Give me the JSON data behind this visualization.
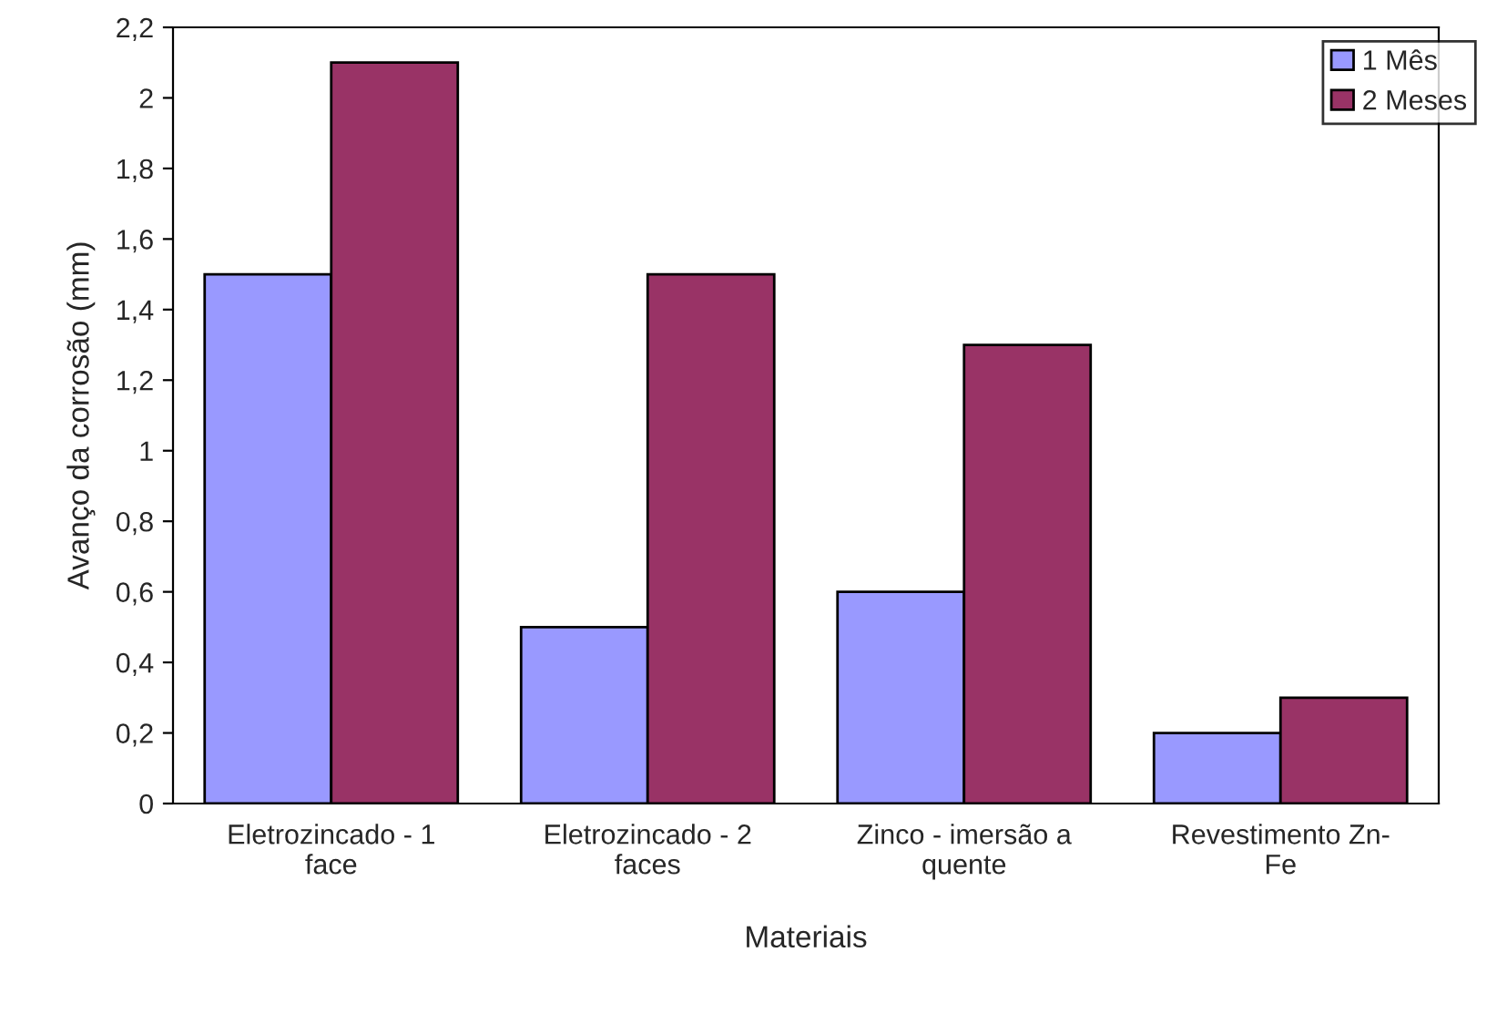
{
  "chart_data": {
    "type": "bar",
    "xlabel": "Materiais",
    "ylabel": "Avanço da corrosão (mm)",
    "categories": [
      "Eletrozincado - 1\nface",
      "Eletrozincado - 2\nfaces",
      "Zinco - imersão a\nquente",
      "Revestimento Zn-\nFe"
    ],
    "series": [
      {
        "name": "1 Mês",
        "color": "#9999ff",
        "values": [
          1.5,
          0.5,
          0.6,
          0.2
        ]
      },
      {
        "name": "2 Meses",
        "color": "#993366",
        "values": [
          2.1,
          1.5,
          1.3,
          0.3
        ]
      }
    ],
    "ylim": [
      0,
      2.2
    ],
    "yticks": [
      0,
      {
        "value": 0.2,
        "label": "0,2"
      },
      {
        "value": 0.4,
        "label": "0,4"
      },
      {
        "value": 0.6,
        "label": "0,6"
      },
      {
        "value": 0.8,
        "label": "0,8"
      },
      1,
      {
        "value": 1.2,
        "label": "1,2"
      },
      {
        "value": 1.4,
        "label": "1,4"
      },
      {
        "value": 1.6,
        "label": "1,6"
      },
      {
        "value": 1.8,
        "label": "1,8"
      },
      2,
      {
        "value": 2.2,
        "label": "2,2"
      }
    ],
    "grid": false,
    "legend": "top right"
  }
}
